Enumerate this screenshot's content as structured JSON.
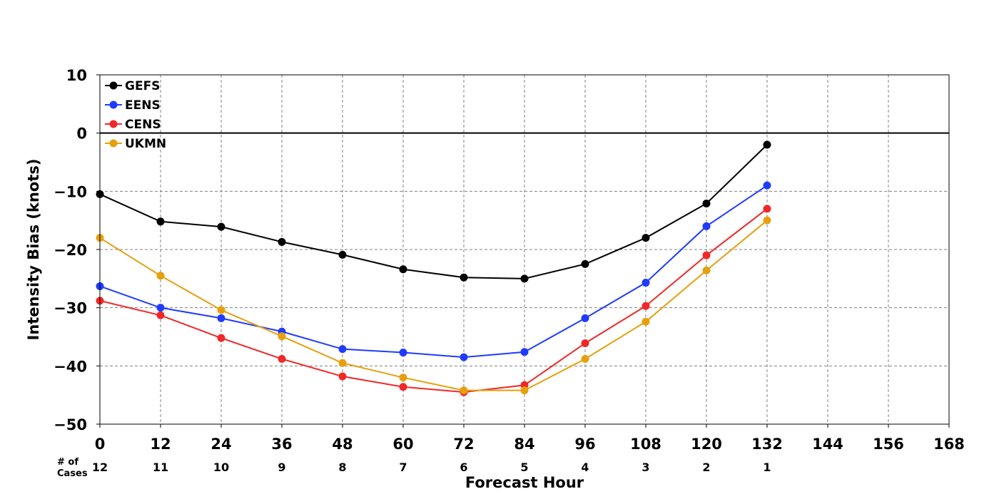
{
  "chart_data": {
    "type": "line",
    "title": "",
    "xlabel": "Forecast Hour",
    "ylabel": "Intensity Bias (knots)",
    "xlim": [
      0,
      168
    ],
    "ylim": [
      -50,
      10
    ],
    "xticks": [
      0,
      12,
      24,
      36,
      48,
      60,
      72,
      84,
      96,
      108,
      120,
      132,
      144,
      156,
      168
    ],
    "yticks": [
      10,
      0,
      -10,
      -20,
      -30,
      -40,
      -50
    ],
    "ytick_labels": [
      "10",
      "0",
      "−10",
      "−20",
      "−30",
      "−40",
      "−50"
    ],
    "grid": true,
    "zero_line": true,
    "legend_position": "top-left",
    "cases_title": "# of\nCases",
    "cases_x": [
      0,
      12,
      24,
      36,
      48,
      60,
      72,
      84,
      96,
      108,
      120,
      132
    ],
    "cases": [
      12,
      11,
      10,
      9,
      8,
      7,
      6,
      5,
      4,
      3,
      2,
      1
    ],
    "x": [
      0,
      12,
      24,
      36,
      48,
      60,
      72,
      84,
      96,
      108,
      120,
      132
    ],
    "series": [
      {
        "name": "GEFS",
        "color": "#000000",
        "values": [
          -10.5,
          -15.2,
          -16.1,
          -18.7,
          -20.9,
          -23.4,
          -24.8,
          -25.0,
          -22.5,
          -18.0,
          -12.1,
          -2.0
        ]
      },
      {
        "name": "EENS",
        "color": "#1f3bff",
        "values": [
          -26.3,
          -30.0,
          -31.8,
          -34.1,
          -37.1,
          -37.7,
          -38.5,
          -37.6,
          -31.8,
          -25.7,
          -16.0,
          -9.0
        ]
      },
      {
        "name": "CENS",
        "color": "#f02828",
        "values": [
          -28.8,
          -31.3,
          -35.2,
          -38.8,
          -41.8,
          -43.6,
          -44.5,
          -43.3,
          -36.1,
          -29.7,
          -21.0,
          -13.0
        ]
      },
      {
        "name": "UKMN",
        "color": "#e6a00f",
        "values": [
          -18.0,
          -24.5,
          -30.4,
          -34.9,
          -39.5,
          -42.0,
          -44.2,
          -44.2,
          -38.8,
          -32.4,
          -23.6,
          -15.0
        ]
      }
    ]
  }
}
